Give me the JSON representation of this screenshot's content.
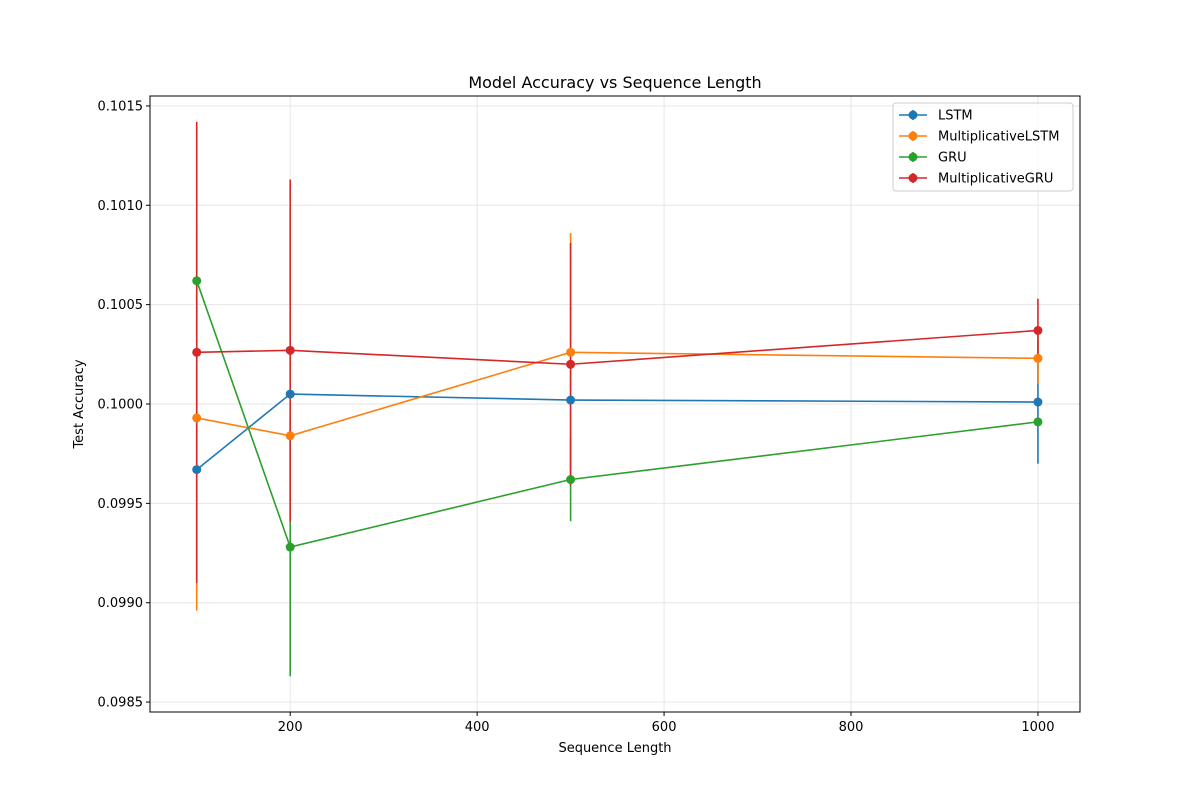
{
  "chart_data": {
    "type": "line",
    "title": "Model Accuracy vs Sequence Length",
    "xlabel": "Sequence Length",
    "ylabel": "Test Accuracy",
    "x": [
      100,
      200,
      500,
      1000
    ],
    "xlim": [
      50,
      1045
    ],
    "ylim": [
      0.09845,
      0.10155
    ],
    "xticks": [
      200,
      400,
      600,
      800,
      1000
    ],
    "yticks": [
      0.0985,
      0.099,
      0.0995,
      0.1,
      0.1005,
      0.101,
      0.1015
    ],
    "ytick_labels": [
      "0.0985",
      "0.0990",
      "0.0995",
      "0.1000",
      "0.1005",
      "0.1010",
      "0.1015"
    ],
    "grid": true,
    "legend_position": "top-right",
    "series": [
      {
        "name": "LSTM",
        "color": "#1f77b4",
        "values": [
          0.09967,
          0.10005,
          0.10002,
          0.10001
        ],
        "errors": [
          0.0,
          0.0,
          0.0,
          0.00031
        ]
      },
      {
        "name": "MultiplicativeLSTM",
        "color": "#ff7f0e",
        "values": [
          0.09993,
          0.09984,
          0.10026,
          0.10023
        ],
        "errors": [
          0.00097,
          0.0,
          0.0006,
          0.00013
        ]
      },
      {
        "name": "GRU",
        "color": "#2ca02c",
        "values": [
          0.10062,
          0.09928,
          0.09962,
          0.09991
        ],
        "errors": [
          0.0,
          0.00065,
          0.00021,
          0.0
        ]
      },
      {
        "name": "MultiplicativeGRU",
        "color": "#d62728",
        "values": [
          0.10026,
          0.10027,
          0.1002,
          0.10037
        ],
        "errors": [
          0.00116,
          0.00086,
          0.00061,
          0.00016
        ]
      }
    ]
  }
}
